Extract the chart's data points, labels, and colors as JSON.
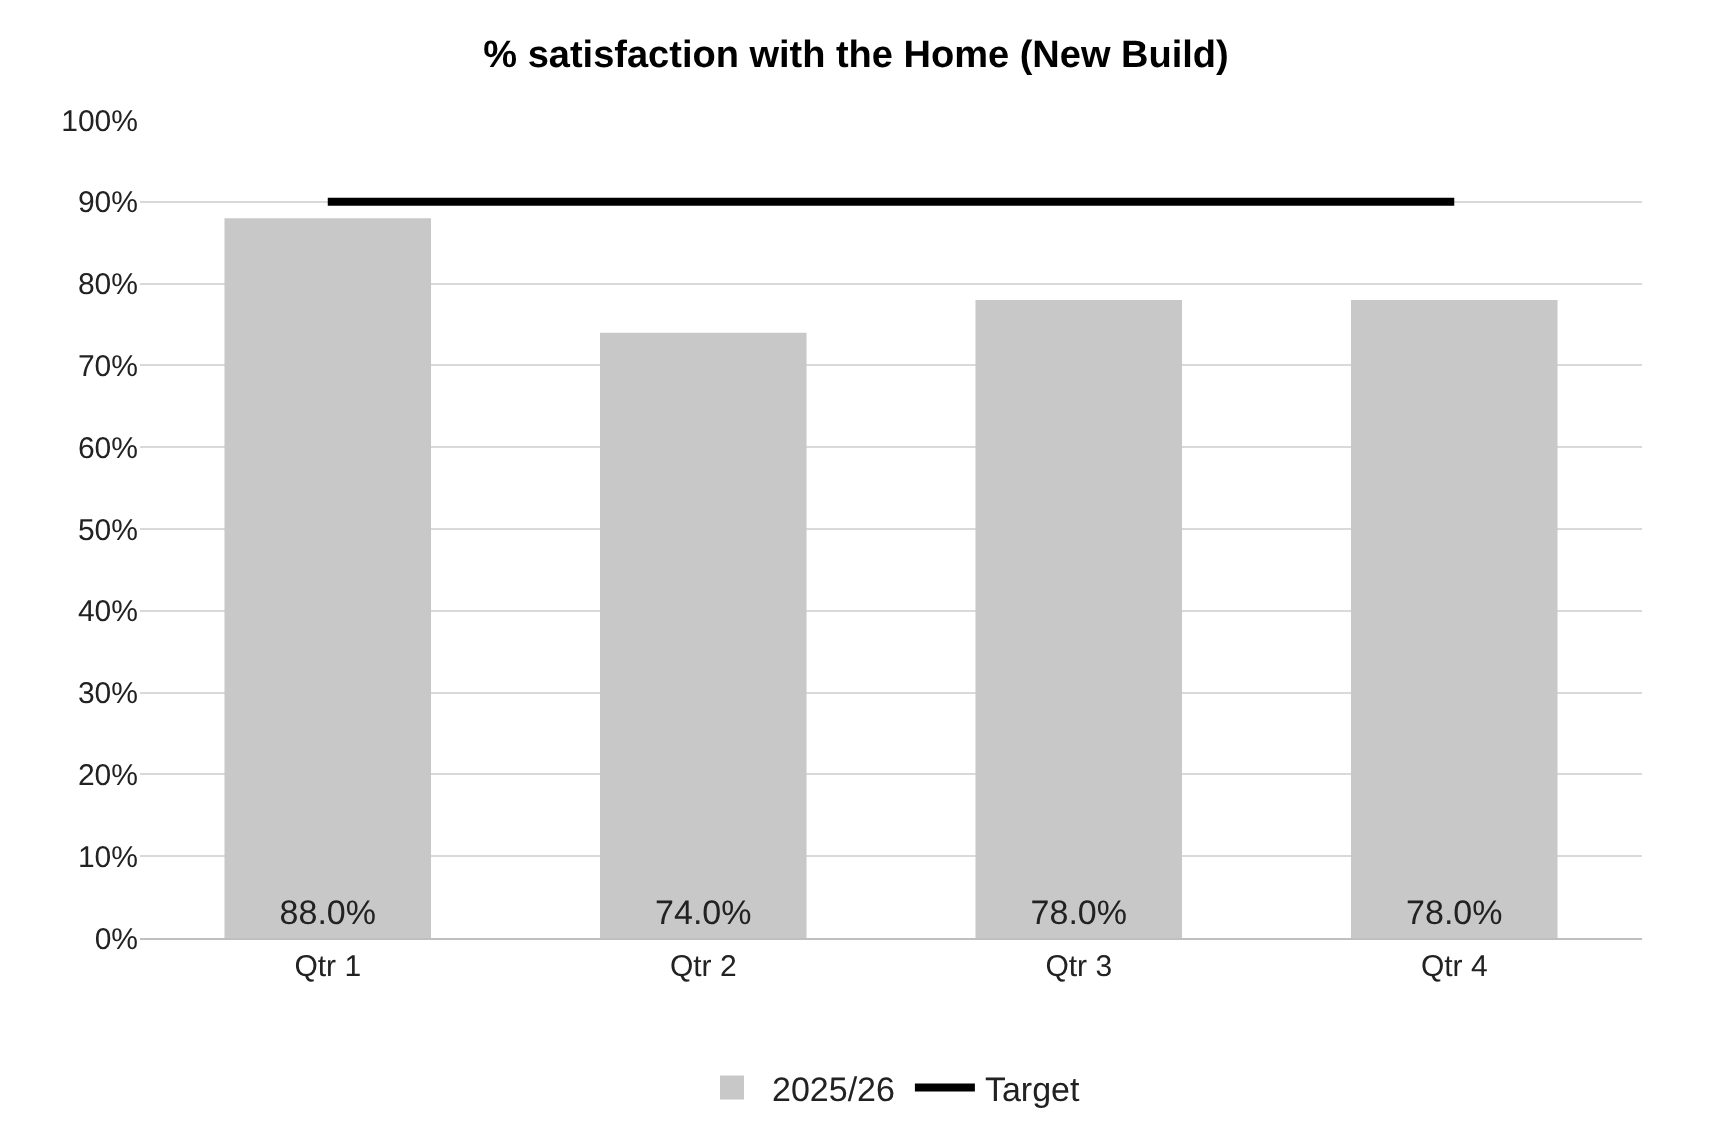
{
  "chart_data": {
    "type": "bar",
    "title": "% satisfaction with the Home (New Build)",
    "categories": [
      "Qtr 1",
      "Qtr 2",
      "Qtr 3",
      "Qtr 4"
    ],
    "series": [
      {
        "name": "2025/26",
        "color": "#c8c8c8",
        "values": [
          88,
          74,
          78,
          78
        ],
        "value_labels": [
          "88.0%",
          "74.0%",
          "78.0%",
          "78.0%"
        ]
      },
      {
        "name": "Target",
        "type": "line",
        "color": "#000000",
        "values": [
          90,
          90,
          90,
          90
        ]
      }
    ],
    "ylim": [
      0,
      100
    ],
    "yticks": [
      {
        "value": 0,
        "label": "0%"
      },
      {
        "value": 10,
        "label": "10%"
      },
      {
        "value": 20,
        "label": "20%"
      },
      {
        "value": 30,
        "label": "30%"
      },
      {
        "value": 40,
        "label": "40%"
      },
      {
        "value": 50,
        "label": "50%"
      },
      {
        "value": 60,
        "label": "60%"
      },
      {
        "value": 70,
        "label": "70%"
      },
      {
        "value": 80,
        "label": "80%"
      },
      {
        "value": 90,
        "label": "90%"
      },
      {
        "value": 100,
        "label": "100%"
      }
    ],
    "grid": "y",
    "legend": "bottom",
    "marker": "none",
    "line_style": "solid"
  }
}
